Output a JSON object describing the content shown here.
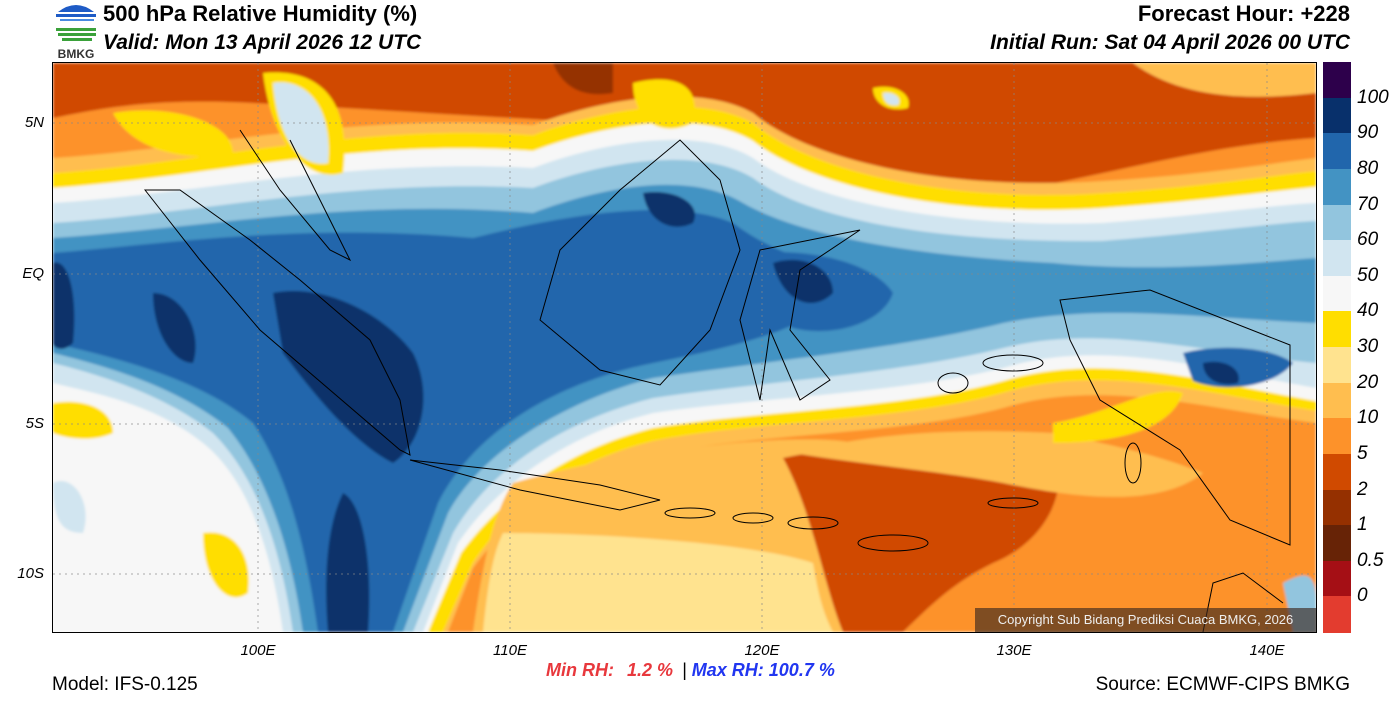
{
  "header": {
    "logo_text": "BMKG",
    "title": "500 hPa Relative Humidity (%)",
    "valid": "Valid: Mon 13 April 2026 12 UTC",
    "forecast_hour": "Forecast Hour: +228",
    "initial_run": "Initial Run: Sat 04 April 2026 00 UTC"
  },
  "axes": {
    "lat_labels": [
      "5N",
      "EQ",
      "5S",
      "10S"
    ],
    "lon_labels": [
      "100E",
      "110E",
      "120E",
      "130E",
      "140E"
    ]
  },
  "colorbar": {
    "colors": [
      "#2d004b",
      "#08306b",
      "#2166ac",
      "#4393c3",
      "#92c5de",
      "#d1e5f0",
      "#f7f7f7",
      "#ffde00",
      "#ffe38f",
      "#ffbe4f",
      "#fd922a",
      "#d04a00",
      "#953000",
      "#672306",
      "#a50f15",
      "#e33c2f"
    ],
    "labels": [
      "100",
      "90",
      "80",
      "70",
      "60",
      "50",
      "40",
      "30",
      "20",
      "10",
      "5",
      "2",
      "1",
      "0.5",
      "0"
    ]
  },
  "footer": {
    "model": "Model: IFS-0.125",
    "min_label": "Min RH:",
    "min_value": "1.2 %",
    "separator": "|",
    "max_label": "Max RH:",
    "max_value": "100.7 %",
    "source": "Source: ECMWF-CIPS BMKG",
    "copyright": "Copyright Sub Bidang Prediksi Cuaca BMKG, 2026"
  }
}
